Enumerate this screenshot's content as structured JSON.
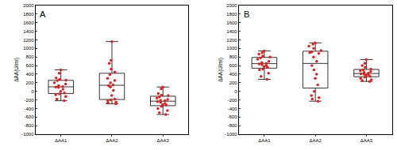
{
  "chart_data": [
    {
      "type": "box",
      "title": "A",
      "ylabel": "ΔAA(U/ml)",
      "categories": [
        "ΔAA1",
        "ΔAA2",
        "ΔAA3"
      ],
      "values": [
        [
          500,
          420,
          310,
          280,
          260,
          250,
          200,
          170,
          130,
          110,
          100,
          90,
          50,
          0,
          -40,
          -60,
          -80,
          -120,
          -180,
          -220
        ],
        [
          1160,
          720,
          650,
          520,
          450,
          390,
          300,
          250,
          200,
          150,
          130,
          100,
          20,
          -100,
          -180,
          -200,
          -220,
          -250,
          -270,
          -290
        ],
        [
          100,
          60,
          -50,
          -90,
          -100,
          -130,
          -160,
          -190,
          -210,
          -220,
          -240,
          -260,
          -280,
          -310,
          -320,
          -350,
          -400,
          -450,
          -500,
          -540
        ]
      ],
      "color": "#e02020",
      "ylim": [
        -1000,
        2000
      ],
      "yticks": [
        -1000,
        -800,
        -600,
        -400,
        -200,
        0,
        200,
        400,
        600,
        800,
        1000,
        1200,
        1400,
        1600,
        1800,
        2000
      ],
      "grid": false
    },
    {
      "type": "box",
      "title": "B",
      "ylabel": "ΔAA(U/ml)",
      "categories": [
        "ΔAA1",
        "ΔAA2",
        "ΔAA3"
      ],
      "values": [
        [
          940,
          900,
          870,
          820,
          800,
          780,
          750,
          700,
          670,
          650,
          640,
          620,
          600,
          580,
          560,
          520,
          500,
          420,
          350,
          280
        ],
        [
          1130,
          1100,
          1050,
          1000,
          950,
          920,
          900,
          880,
          800,
          700,
          600,
          500,
          400,
          300,
          150,
          0,
          -100,
          -150,
          -180,
          -230
        ],
        [
          740,
          650,
          600,
          560,
          520,
          500,
          480,
          460,
          440,
          420,
          410,
          400,
          390,
          370,
          350,
          330,
          300,
          270,
          250,
          230
        ]
      ],
      "color": "#e02020",
      "ylim": [
        -1000,
        2000
      ],
      "yticks": [
        -1000,
        -800,
        -600,
        -400,
        -200,
        0,
        200,
        400,
        600,
        800,
        1000,
        1200,
        1400,
        1600,
        1800,
        2000
      ],
      "grid": false
    }
  ]
}
